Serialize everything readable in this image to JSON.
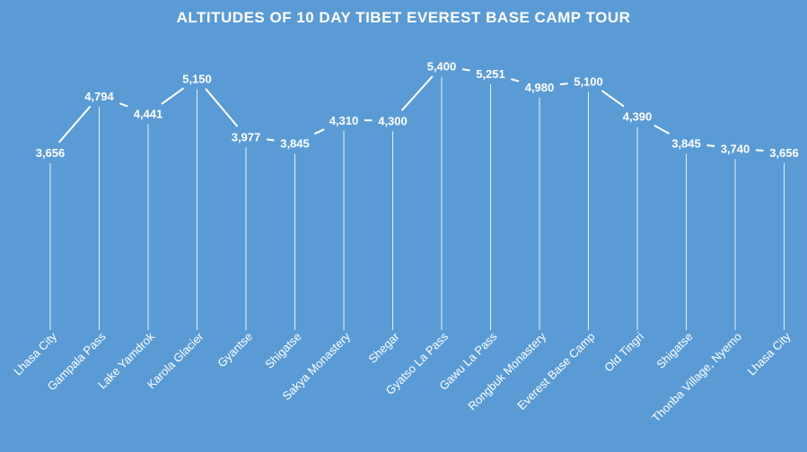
{
  "chart_data": {
    "type": "line",
    "title": "ALTITUDES OF 10 DAY TIBET EVEREST BASE CAMP TOUR",
    "xlabel": "",
    "ylabel": "",
    "categories": [
      "Lhasa City",
      "Gampala Pass",
      "Lake Yamdrok",
      "Karola Glacier",
      "Gyantse",
      "Shigatse",
      "Sakya Monastery",
      "Shegar",
      "Gyatso La Pass",
      "Gawu La Pass",
      "Rongbuk Monastery",
      "Everest Base Camp",
      "Old Tingri",
      "Shigatse",
      "Thonba Village, Nyemo",
      "Lhasa City"
    ],
    "values": [
      3656,
      4794,
      4441,
      5150,
      3977,
      3845,
      4310,
      4300,
      5400,
      5251,
      4980,
      5100,
      4390,
      3845,
      3740,
      3656
    ],
    "value_labels": [
      "3,656",
      "4,794",
      "4,441",
      "5,150",
      "3,977",
      "3,845",
      "4,310",
      "4,300",
      "5,400",
      "5,251",
      "4,980",
      "5,100",
      "4,390",
      "3,845",
      "3,740",
      "3,656"
    ],
    "grid": false,
    "legend": "none",
    "drop_lines": true,
    "colors": {
      "background": "#5b9bd5",
      "line": "#ffffff",
      "text": "#ffffff"
    }
  }
}
